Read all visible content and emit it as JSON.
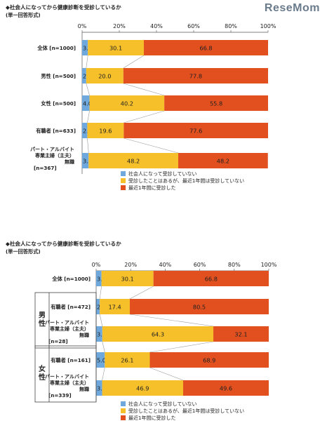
{
  "logo": "ReseMom",
  "colors": {
    "not_since": "#6fa8dc",
    "past_only": "#f6c02b",
    "last_year": "#e2501f"
  },
  "legend": [
    "社会人になって受診していない",
    "受診したことはあるが、最近1年間は受診していない",
    "最近1年間に受診した"
  ],
  "chart_data": [
    {
      "type": "bar",
      "orientation": "horizontal",
      "stacked": true,
      "title": "◆社会人になってから健康診断を受診しているか",
      "subtitle": "(単一回答形式)",
      "xlim": [
        0,
        100
      ],
      "ticks": [
        "0%",
        "20%",
        "40%",
        "60%",
        "80%",
        "100%"
      ],
      "grid": false,
      "legend_position": "bottom-center",
      "categories": [
        {
          "label": "全体",
          "n": "[n=1000]"
        },
        {
          "label": "男性",
          "n": "[n=500]"
        },
        {
          "label": "女性",
          "n": "[n=500]"
        },
        {
          "label": "有職者",
          "n": "[n=633]"
        },
        {
          "label": "パート・アルバイト\n専業主婦（主夫）\n無職",
          "n": "[n=367]"
        }
      ],
      "series": [
        {
          "name": "社会人になって受診していない",
          "values": [
            3.1,
            2.2,
            4.0,
            2.8,
            3.5
          ]
        },
        {
          "name": "受診したことはあるが、最近1年間は受診していない",
          "values": [
            30.1,
            20.0,
            40.2,
            19.6,
            48.2
          ]
        },
        {
          "name": "最近1年間に受診した",
          "values": [
            66.8,
            77.8,
            55.8,
            77.6,
            48.2
          ]
        }
      ]
    },
    {
      "type": "bar",
      "orientation": "horizontal",
      "stacked": true,
      "title": "◆社会人になってから健康診断を受診しているか",
      "subtitle": "(単一回答形式)",
      "xlim": [
        0,
        100
      ],
      "ticks": [
        "0%",
        "20%",
        "40%",
        "60%",
        "80%",
        "100%"
      ],
      "grid": false,
      "legend_position": "bottom-center",
      "groups": [
        {
          "label": "男性",
          "rows": [
            1,
            2
          ]
        },
        {
          "label": "女性",
          "rows": [
            3,
            4
          ]
        }
      ],
      "categories": [
        {
          "label": "全体",
          "n": "[n=1000]"
        },
        {
          "label": "有職者",
          "n": "[n=472]"
        },
        {
          "label": "パート・アルバイト\n専業主婦（主夫）\n無職",
          "n": "[n=28]"
        },
        {
          "label": "有職者",
          "n": "[n=161]"
        },
        {
          "label": "パート・アルバイト\n専業主婦（主夫）\n無職",
          "n": "[n=339]"
        }
      ],
      "series": [
        {
          "name": "社会人になって受診していない",
          "values": [
            3.1,
            2.1,
            3.6,
            5.0,
            3.5
          ]
        },
        {
          "name": "受診したことはあるが、最近1年間は受診していない",
          "values": [
            30.1,
            17.4,
            64.3,
            26.1,
            46.9
          ]
        },
        {
          "name": "最近1年間に受診した",
          "values": [
            66.8,
            80.5,
            32.1,
            68.9,
            49.6
          ]
        }
      ]
    }
  ]
}
